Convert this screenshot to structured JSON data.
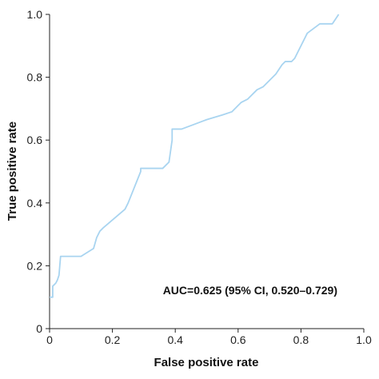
{
  "chart_data": {
    "type": "line",
    "title": "",
    "xlabel": "False positive rate",
    "ylabel": "True positive rate",
    "xlim": [
      0,
      1
    ],
    "ylim": [
      0,
      1
    ],
    "x_ticks": [
      0,
      0.2,
      0.4,
      0.6,
      0.8,
      1
    ],
    "x_tick_labels": [
      "0",
      "0.2",
      "0.4",
      "0.6",
      "0.8",
      "1.0"
    ],
    "y_ticks": [
      0,
      0.2,
      0.4,
      0.6,
      0.8,
      1
    ],
    "y_tick_labels": [
      "0",
      "0.2",
      "0.4",
      "0.6",
      "0.8",
      "1.0"
    ],
    "grid": false,
    "legend": "none",
    "annotation": "AUC=0.625 (95% CI, 0.520–0.729)",
    "series": [
      {
        "color": "#a8d4f0",
        "x": [
          0.0,
          0.01,
          0.01,
          0.02,
          0.025,
          0.03,
          0.035,
          0.1,
          0.14,
          0.15,
          0.16,
          0.17,
          0.24,
          0.25,
          0.29,
          0.29,
          0.36,
          0.38,
          0.39,
          0.39,
          0.42,
          0.46,
          0.5,
          0.55,
          0.58,
          0.59,
          0.61,
          0.63,
          0.66,
          0.68,
          0.7,
          0.72,
          0.74,
          0.75,
          0.77,
          0.78,
          0.79,
          0.82,
          0.86,
          0.9,
          0.92
        ],
        "y": [
          0.1,
          0.1,
          0.135,
          0.145,
          0.155,
          0.17,
          0.23,
          0.23,
          0.255,
          0.29,
          0.31,
          0.32,
          0.38,
          0.4,
          0.5,
          0.51,
          0.51,
          0.53,
          0.6,
          0.635,
          0.635,
          0.65,
          0.665,
          0.68,
          0.69,
          0.7,
          0.72,
          0.73,
          0.76,
          0.77,
          0.79,
          0.81,
          0.84,
          0.85,
          0.85,
          0.86,
          0.88,
          0.94,
          0.97,
          0.97,
          1.0
        ]
      }
    ]
  }
}
